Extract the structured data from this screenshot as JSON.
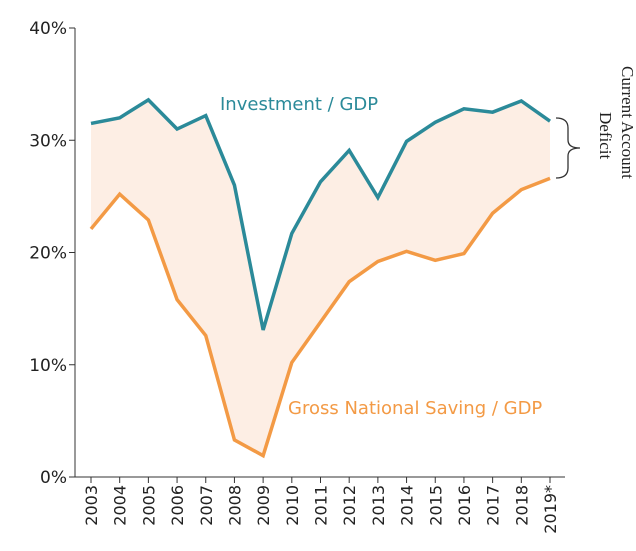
{
  "chart_data": {
    "type": "line",
    "categories": [
      "2003",
      "2004",
      "2005",
      "2006",
      "2007",
      "2008",
      "2009",
      "2010",
      "2011",
      "2012",
      "2013",
      "2014",
      "2015",
      "2016",
      "2017",
      "2018",
      "2019*"
    ],
    "series": [
      {
        "name": "Investment / GDP",
        "color": "#2b8a99",
        "values": [
          31.5,
          32.0,
          33.6,
          31.0,
          32.2,
          26.0,
          13.1,
          21.7,
          26.3,
          29.1,
          24.9,
          29.9,
          31.6,
          32.8,
          32.5,
          33.5,
          31.7
        ]
      },
      {
        "name": "Gross National Saving / GDP",
        "color": "#f39a45",
        "values": [
          22.1,
          25.2,
          22.9,
          15.8,
          12.6,
          3.3,
          1.9,
          10.2,
          13.8,
          17.4,
          19.2,
          20.1,
          19.3,
          19.9,
          23.5,
          25.6,
          26.6
        ]
      }
    ],
    "fill_between_color": "#fdeee4",
    "annotation": [
      "Current Account",
      "Deficit"
    ],
    "ylim": [
      0,
      40
    ],
    "yticks": [
      {
        "value": 0,
        "label": "0%"
      },
      {
        "value": 10,
        "label": "10%"
      },
      {
        "value": 20,
        "label": "20%"
      },
      {
        "value": 30,
        "label": "30%"
      },
      {
        "value": 40,
        "label": "40%"
      }
    ]
  }
}
